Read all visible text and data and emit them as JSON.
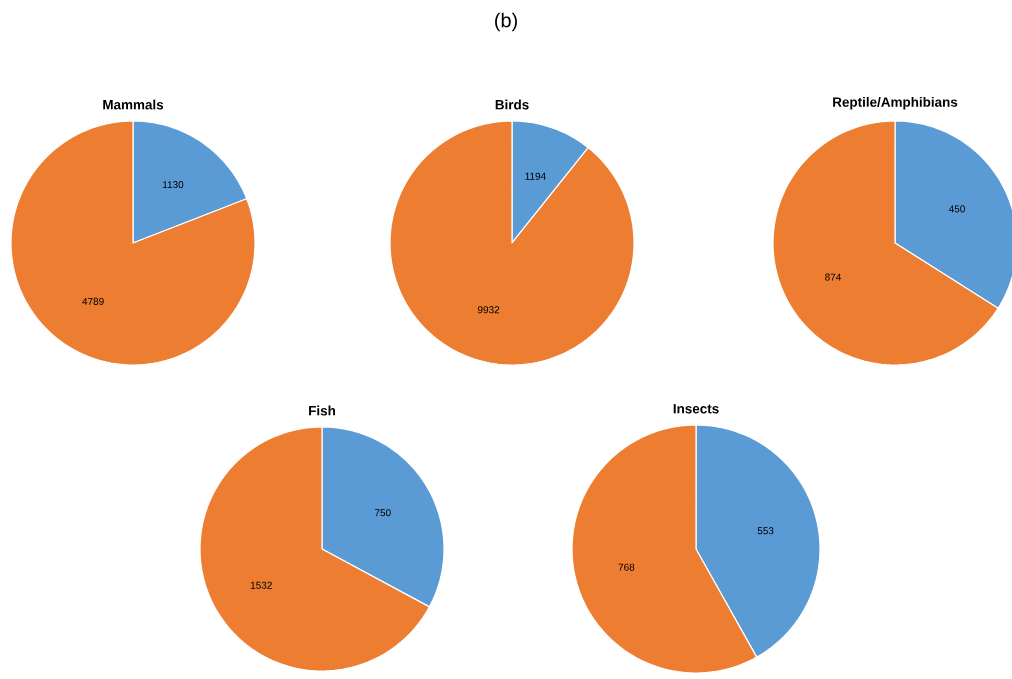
{
  "chart_data": [
    {
      "type": "pie",
      "title": "Mammals",
      "categories": [
        null,
        null
      ],
      "values": [
        1130,
        4789
      ],
      "colors": [
        "#5b9bd5",
        "#ed7d31"
      ],
      "data_labels": true,
      "annotations": [
        "(b)"
      ]
    },
    {
      "type": "pie",
      "title": "Birds",
      "categories": [
        null,
        null
      ],
      "values": [
        1194,
        9932
      ],
      "colors": [
        "#5b9bd5",
        "#ed7d31"
      ],
      "data_labels": true
    },
    {
      "type": "pie",
      "title": "Reptile/Amphibians",
      "categories": [
        null,
        null
      ],
      "values": [
        450,
        874
      ],
      "colors": [
        "#5b9bd5",
        "#ed7d31"
      ],
      "data_labels": true
    },
    {
      "type": "pie",
      "title": "Fish",
      "categories": [
        null,
        null
      ],
      "values": [
        750,
        1532
      ],
      "colors": [
        "#5b9bd5",
        "#ed7d31"
      ],
      "data_labels": true
    },
    {
      "type": "pie",
      "title": "Insects",
      "categories": [
        null,
        null
      ],
      "values": [
        553,
        768
      ],
      "colors": [
        "#5b9bd5",
        "#ed7d31"
      ],
      "data_labels": true
    }
  ]
}
